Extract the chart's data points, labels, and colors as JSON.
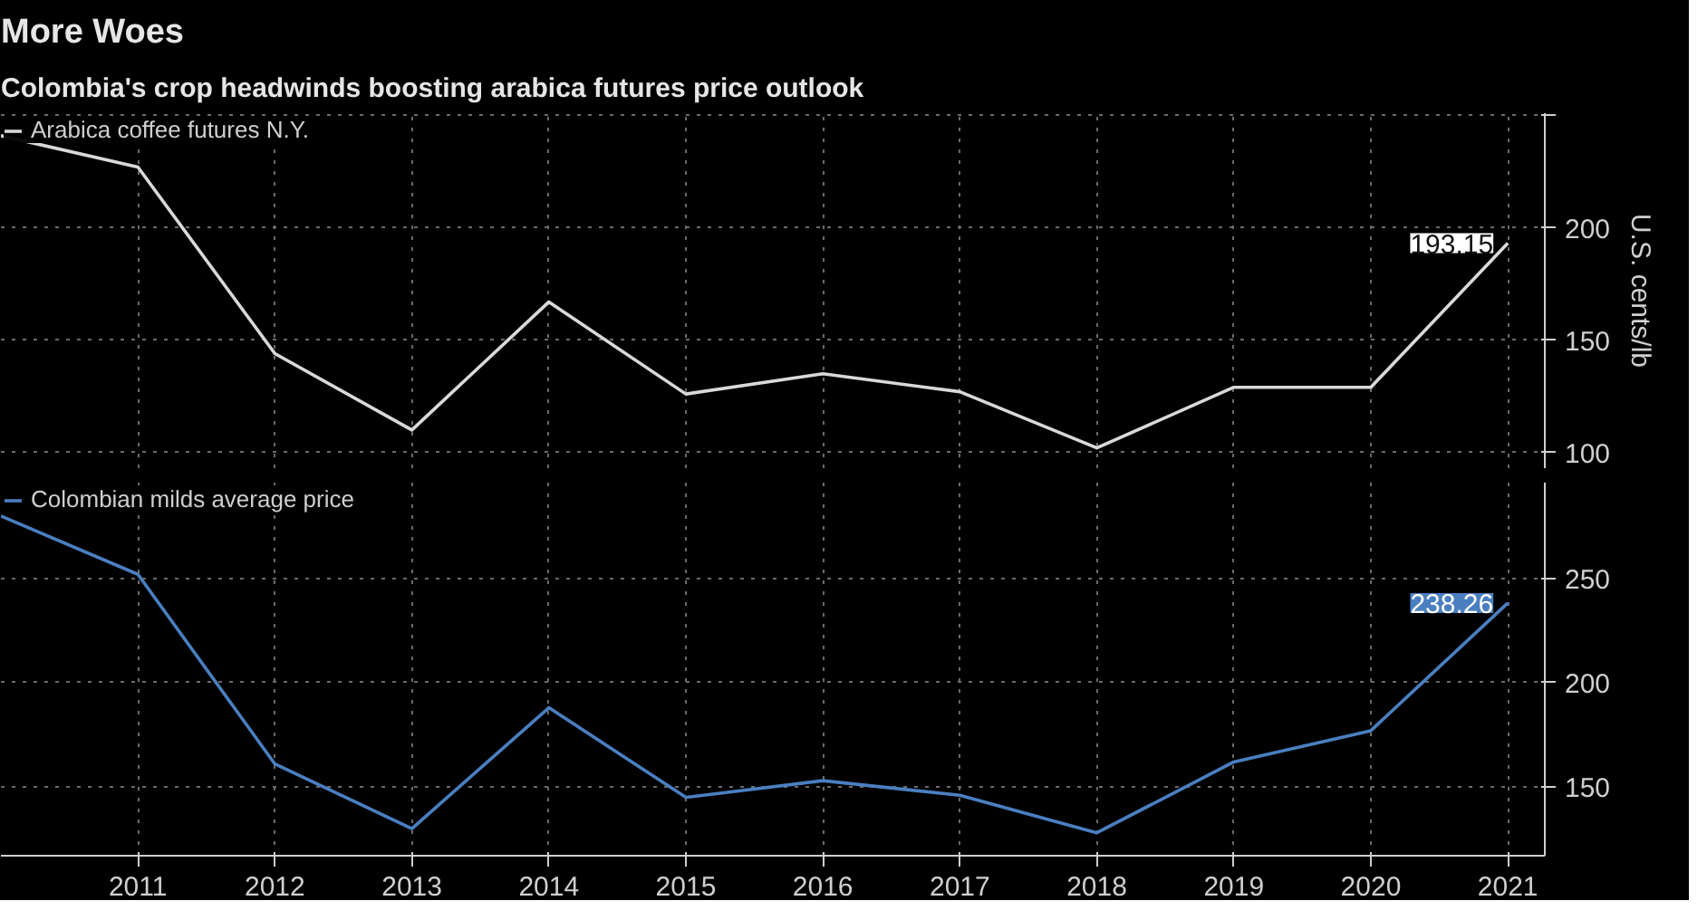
{
  "chart_data": [
    {
      "type": "line",
      "title": "More Woes",
      "subtitle": "Colombia's crop headwinds boosting arabica futures price outlook",
      "ylabel": "U.S. cents/lb",
      "x": [
        2010,
        2011,
        2012,
        2013,
        2014,
        2015,
        2016,
        2017,
        2018,
        2019,
        2020,
        2021
      ],
      "series": [
        {
          "name": "Arabica coffee futures N.Y.",
          "color": "#d9d9d9",
          "values": [
            241,
            227,
            144,
            110,
            167,
            126,
            135,
            127,
            102,
            129,
            129,
            193.15
          ],
          "value_labels": [
            null,
            null,
            null,
            null,
            null,
            null,
            null,
            null,
            null,
            null,
            null,
            "193.15"
          ]
        }
      ],
      "xlim": [
        2010,
        2021.27
      ],
      "xticks": [
        2011,
        2012,
        2013,
        2014,
        2015,
        2016,
        2017,
        2018,
        2019,
        2020,
        2021
      ],
      "ylim": [
        93,
        251
      ],
      "yticks": [
        100,
        150,
        200,
        {
          "value": 250,
          "label": null
        }
      ],
      "tick_labels": "y",
      "grid": true,
      "legend": "top left"
    },
    {
      "type": "line",
      "x": [
        2010,
        2011,
        2012,
        2013,
        2014,
        2015,
        2016,
        2017,
        2018,
        2019,
        2020,
        2021
      ],
      "series": [
        {
          "name": "Colombian milds average price",
          "color": "#4a7fc1",
          "values": [
            280,
            252,
            161,
            130,
            188,
            145,
            153,
            146,
            128,
            162,
            177,
            238.26
          ],
          "value_labels": [
            null,
            null,
            null,
            null,
            null,
            null,
            null,
            null,
            null,
            null,
            null,
            "238.26"
          ]
        }
      ],
      "xlim": [
        2010,
        2021.27
      ],
      "xticks": [
        2011,
        2012,
        2013,
        2014,
        2015,
        2016,
        2017,
        2018,
        2019,
        2020,
        2021
      ],
      "ylim": [
        117,
        296
      ],
      "yticks": [
        150,
        200,
        250
      ],
      "grid": true,
      "legend": "top left"
    }
  ]
}
